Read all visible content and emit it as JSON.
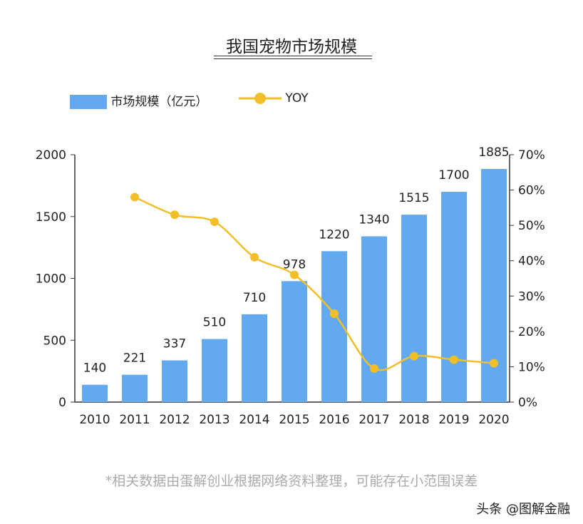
{
  "chart_data": {
    "type": "bar+line",
    "title": "我国宠物市场规模",
    "categories": [
      "2010",
      "2011",
      "2012",
      "2013",
      "2014",
      "2015",
      "2016",
      "2017",
      "2018",
      "2019",
      "2020"
    ],
    "series": [
      {
        "name": "市场规模（亿元）",
        "type": "bar",
        "axis": "left",
        "color": "#62a9f0",
        "values": [
          140,
          221,
          337,
          510,
          710,
          978,
          1220,
          1340,
          1515,
          1700,
          1885
        ]
      },
      {
        "name": "YOY",
        "type": "line",
        "axis": "right",
        "color": "#f2bf2a",
        "values": [
          null,
          58,
          53,
          51,
          41,
          36,
          25,
          9.5,
          13,
          12,
          11
        ]
      }
    ],
    "y_left": {
      "range": [
        0,
        2000
      ],
      "ticks": [
        "0",
        "500",
        "1000",
        "1500",
        "2000"
      ]
    },
    "y_right": {
      "range": [
        0,
        70
      ],
      "ticks": [
        "0%",
        "10%",
        "20%",
        "30%",
        "40%",
        "50%",
        "60%",
        "70%"
      ]
    },
    "legend": "top-left",
    "grid": false,
    "footnote": "*相关数据由蛋解创业根据网络资料整理，可能存在小范围误差",
    "watermark": "头条 @图解金融"
  }
}
